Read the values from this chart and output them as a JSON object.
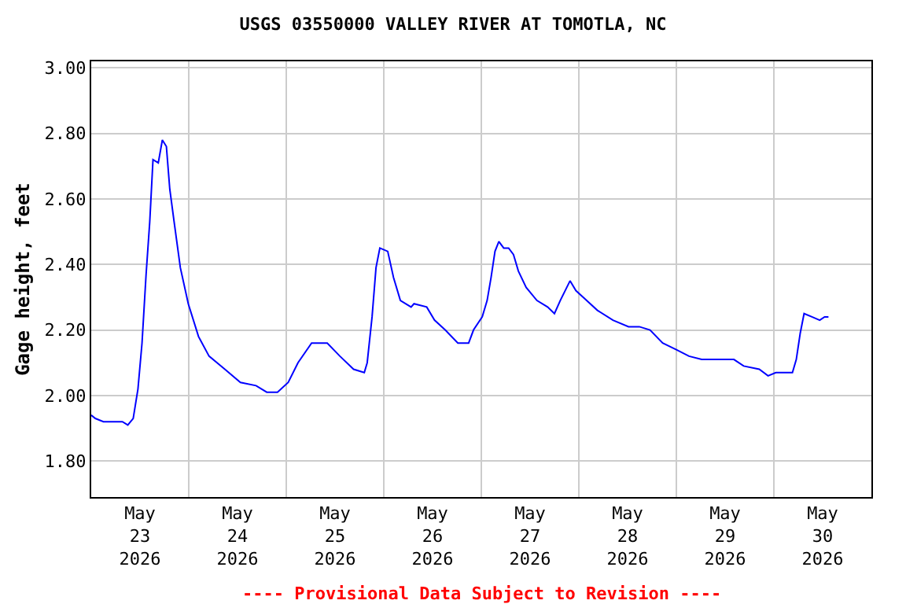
{
  "chart_data": {
    "type": "line",
    "title": "USGS 03550000 VALLEY RIVER AT TOMOTLA, NC",
    "ylabel": "Gage height, feet",
    "x": [
      "2026-05-23T00:00",
      "2026-05-23T01:00",
      "2026-05-23T03:00",
      "2026-05-23T07:40",
      "2026-05-23T09:00",
      "2026-05-23T10:20",
      "2026-05-23T11:30",
      "2026-05-23T12:30",
      "2026-05-23T13:30",
      "2026-05-23T14:24",
      "2026-05-23T15:12",
      "2026-05-23T16:30",
      "2026-05-23T17:30",
      "2026-05-23T18:30",
      "2026-05-23T19:20",
      "2026-05-23T20:24",
      "2026-05-23T21:56",
      "2026-05-23T23:53",
      "2026-05-24T02:24",
      "2026-05-24T05:00",
      "2026-05-24T08:53",
      "2026-05-24T12:43",
      "2026-05-24T16:34",
      "2026-05-24T19:12",
      "2026-05-24T21:50",
      "2026-05-25T00:29",
      "2026-05-25T02:53",
      "2026-05-25T06:14",
      "2026-05-25T10:05",
      "2026-05-25T13:12",
      "2026-05-25T16:34",
      "2026-05-25T19:12",
      "2026-05-25T19:55",
      "2026-05-25T21:07",
      "2026-05-25T22:05",
      "2026-05-25T23:02",
      "2026-05-26T00:58",
      "2026-05-26T02:24",
      "2026-05-26T04:05",
      "2026-05-26T06:43",
      "2026-05-26T07:26",
      "2026-05-26T10:34",
      "2026-05-26T12:29",
      "2026-05-26T15:07",
      "2026-05-26T18:14",
      "2026-05-26T20:53",
      "2026-05-26T22:05",
      "2026-05-27T00:14",
      "2026-05-27T01:26",
      "2026-05-27T02:24",
      "2026-05-27T03:22",
      "2026-05-27T04:19",
      "2026-05-27T05:31",
      "2026-05-27T06:43",
      "2026-05-27T07:55",
      "2026-05-27T09:07",
      "2026-05-27T11:02",
      "2026-05-27T13:41",
      "2026-05-27T16:19",
      "2026-05-27T18:00",
      "2026-05-27T19:26",
      "2026-05-27T21:50",
      "2026-05-27T23:17",
      "2026-05-28T01:55",
      "2026-05-28T04:34",
      "2026-05-28T08:24",
      "2026-05-28T12:14",
      "2026-05-28T14:53",
      "2026-05-28T17:31",
      "2026-05-28T20:38",
      "2026-05-29T00:00",
      "2026-05-29T03:07",
      "2026-05-29T06:14",
      "2026-05-29T14:10",
      "2026-05-29T16:34",
      "2026-05-29T20:24",
      "2026-05-29T22:34",
      "2026-05-30T00:29",
      "2026-05-30T04:34",
      "2026-05-30T05:31",
      "2026-05-30T06:29",
      "2026-05-30T07:26",
      "2026-05-30T09:22",
      "2026-05-30T11:17",
      "2026-05-30T12:29",
      "2026-05-30T13:26"
    ],
    "series": [
      {
        "color": "#0000ff",
        "values": [
          1.94,
          1.93,
          1.92,
          1.92,
          1.91,
          1.93,
          2.02,
          2.16,
          2.37,
          2.53,
          2.72,
          2.71,
          2.78,
          2.76,
          2.63,
          2.53,
          2.39,
          2.28,
          2.18,
          2.12,
          2.08,
          2.04,
          2.03,
          2.01,
          2.01,
          2.04,
          2.1,
          2.16,
          2.16,
          2.12,
          2.08,
          2.07,
          2.1,
          2.24,
          2.39,
          2.45,
          2.44,
          2.36,
          2.29,
          2.27,
          2.28,
          2.27,
          2.23,
          2.2,
          2.16,
          2.16,
          2.2,
          2.24,
          2.29,
          2.36,
          2.44,
          2.47,
          2.45,
          2.45,
          2.43,
          2.38,
          2.33,
          2.29,
          2.27,
          2.25,
          2.29,
          2.35,
          2.32,
          2.29,
          2.26,
          2.23,
          2.21,
          2.21,
          2.2,
          2.16,
          2.14,
          2.12,
          2.11,
          2.11,
          2.09,
          2.08,
          2.06,
          2.07,
          2.07,
          2.11,
          2.19,
          2.25,
          2.24,
          2.23,
          2.24,
          2.24
        ]
      }
    ],
    "xlim": [
      "2026-05-23T00:00",
      "2026-05-31T00:00"
    ],
    "xticks": [
      {
        "value": "2026-05-23T12:00",
        "label": "May\n23\n2026"
      },
      {
        "value": "2026-05-24T12:00",
        "label": "May\n24\n2026"
      },
      {
        "value": "2026-05-25T12:00",
        "label": "May\n25\n2026"
      },
      {
        "value": "2026-05-26T12:00",
        "label": "May\n26\n2026"
      },
      {
        "value": "2026-05-27T12:00",
        "label": "May\n27\n2026"
      },
      {
        "value": "2026-05-28T12:00",
        "label": "May\n28\n2026"
      },
      {
        "value": "2026-05-29T12:00",
        "label": "May\n29\n2026"
      },
      {
        "value": "2026-05-30T12:00",
        "label": "May\n30\n2026"
      },
      {
        "value": "2026-05-24T00:00",
        "label": null
      },
      {
        "value": "2026-05-25T00:00",
        "label": null
      },
      {
        "value": "2026-05-26T00:00",
        "label": null
      },
      {
        "value": "2026-05-27T00:00",
        "label": null
      },
      {
        "value": "2026-05-28T00:00",
        "label": null
      },
      {
        "value": "2026-05-29T00:00",
        "label": null
      },
      {
        "value": "2026-05-30T00:00",
        "label": null
      }
    ],
    "ylim": [
      1.69,
      3.02
    ],
    "yticks": [
      {
        "value": 1.8,
        "label": "1.80"
      },
      {
        "value": 2.0,
        "label": "2.00"
      },
      {
        "value": 2.2,
        "label": "2.20"
      },
      {
        "value": 2.4,
        "label": "2.40"
      },
      {
        "value": 2.6,
        "label": "2.60"
      },
      {
        "value": 2.8,
        "label": "2.80"
      },
      {
        "value": 3.0,
        "label": "3.00"
      }
    ],
    "annotations": [
      "---- Provisional Data Subject to Revision ----"
    ],
    "grid": true,
    "marker": "none",
    "line_style": "solid"
  }
}
